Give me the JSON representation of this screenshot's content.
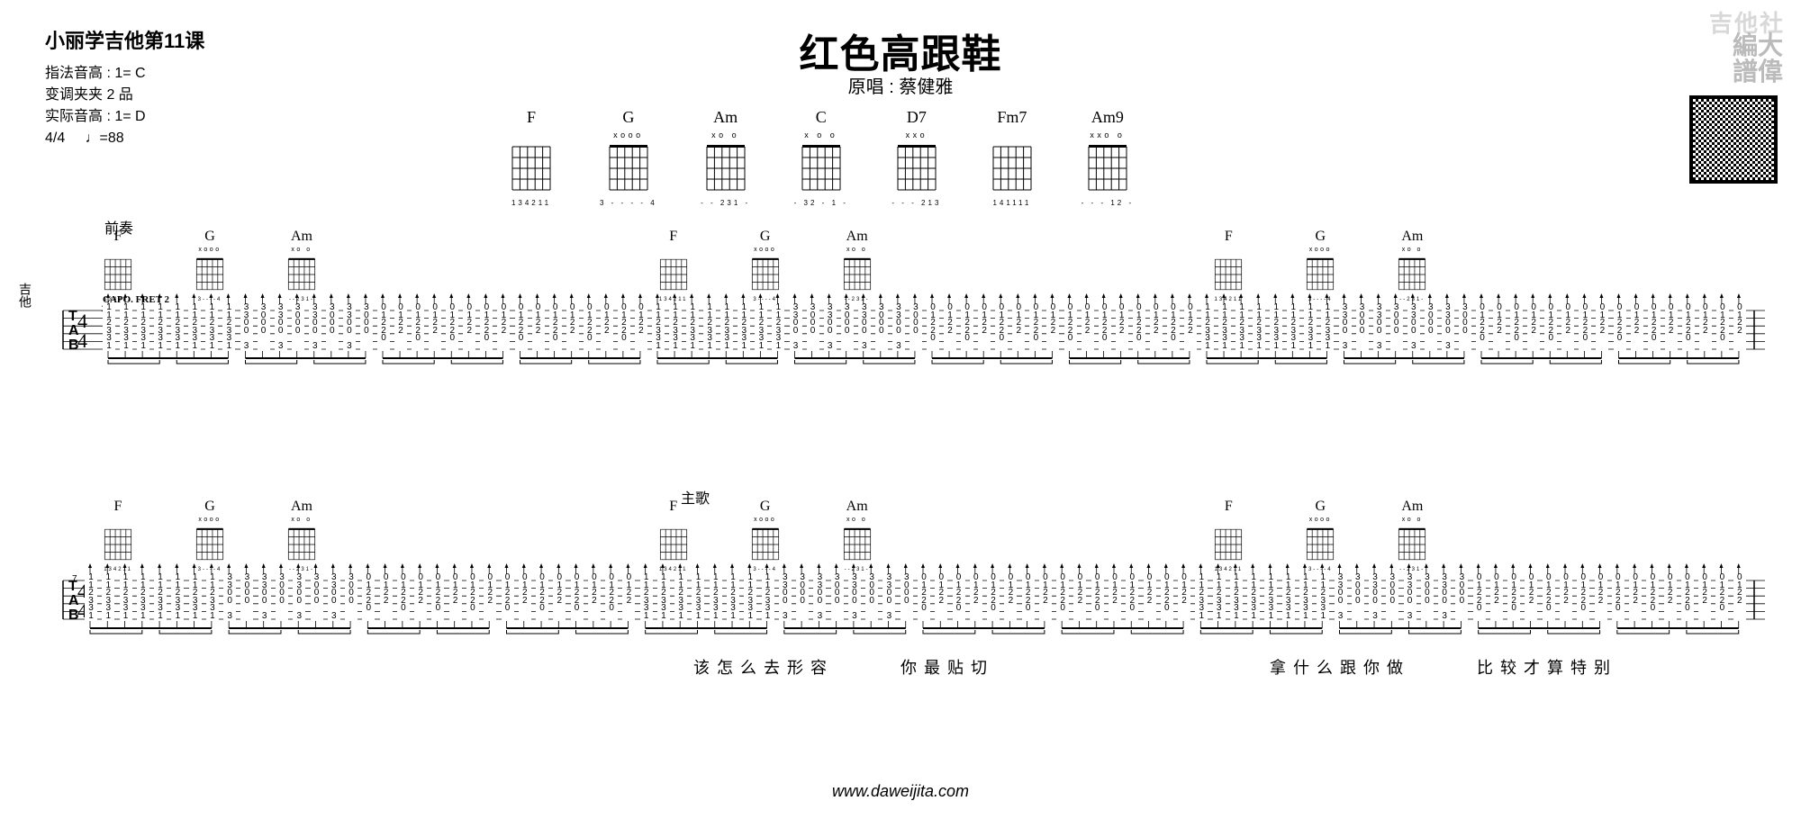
{
  "header": {
    "lesson_title": "小丽学吉他第11课",
    "meta": {
      "line1": "指法音高 : 1= C",
      "line2": "变调夹夹 2 品",
      "line3": "实际音高 : 1= D",
      "time_sig": "4/4",
      "tempo": "♩=88"
    },
    "song_title": "红色高跟鞋",
    "song_sub": "原唱 : 蔡健雅"
  },
  "watermarks": {
    "jts": "吉他社",
    "dwp_line1": "編大",
    "dwp_line2": "譜偉"
  },
  "chord_ref": [
    {
      "name": "F",
      "fingering": "134211",
      "top": "      ",
      "nut": false
    },
    {
      "name": "G",
      "fingering": "3 - - - - 4",
      "top": " xooo ",
      "nut": true
    },
    {
      "name": "Am",
      "fingering": "- - 231 -",
      "top": "xo   o",
      "nut": true
    },
    {
      "name": "C",
      "fingering": "- 32 - 1 -",
      "top": "x  o o",
      "nut": true
    },
    {
      "name": "D7",
      "fingering": "- - - 213",
      "top": "xxo   ",
      "nut": true
    },
    {
      "name": "Fm7",
      "fingering": "141111",
      "top": "      ",
      "nut": false
    },
    {
      "name": "Am9",
      "fingering": "- - - 12 -",
      "top": "xxo  o",
      "nut": true
    }
  ],
  "section_labels": {
    "intro": "前奏",
    "verse": "主歌"
  },
  "strip_chords": [
    {
      "name": "F",
      "fingering": "134211",
      "top": "      ",
      "nut": false
    },
    {
      "name": "G",
      "fingering": "3----4",
      "top": " xooo ",
      "nut": true
    },
    {
      "name": "Am",
      "fingering": "--231-",
      "top": "xo   o",
      "nut": true
    }
  ],
  "capo_note": "CAPO.  FRET 2",
  "bar_numbers": {
    "row1": "1",
    "row2": "7"
  },
  "tab_columns": {
    "F_block": [
      [
        "1",
        "1",
        "2",
        "3",
        "3",
        "1"
      ],
      [
        "1",
        "1",
        "2",
        "3",
        "3",
        "1"
      ],
      [
        "1",
        "1",
        "2",
        "3",
        "3",
        "1"
      ],
      [
        "1",
        "1",
        "2",
        "3",
        "3",
        "1"
      ],
      [
        "1",
        "1",
        "2",
        "3",
        "3",
        "1"
      ],
      [
        "1",
        "1",
        "2",
        "3",
        "3",
        "1"
      ],
      [
        "1",
        "1",
        "2",
        "3",
        "3",
        "1"
      ],
      [
        "1",
        "1",
        "2",
        "3",
        "3",
        "1"
      ]
    ],
    "G_block": [
      [
        "3",
        "3",
        "0",
        "0",
        "",
        "3"
      ],
      [
        "3",
        "0",
        "0",
        "0",
        "",
        ""
      ],
      [
        "3",
        "3",
        "0",
        "0",
        "",
        "3"
      ],
      [
        "3",
        "0",
        "0",
        "0",
        "",
        ""
      ],
      [
        "3",
        "3",
        "0",
        "0",
        "",
        "3"
      ],
      [
        "3",
        "0",
        "0",
        "0",
        "",
        ""
      ],
      [
        "3",
        "3",
        "0",
        "0",
        "",
        "3"
      ],
      [
        "3",
        "0",
        "0",
        "0",
        "",
        ""
      ]
    ],
    "Am_block": [
      [
        "0",
        "1",
        "2",
        "2",
        "0",
        ""
      ],
      [
        "0",
        "1",
        "2",
        "2",
        "",
        ""
      ],
      [
        "0",
        "1",
        "2",
        "2",
        "0",
        ""
      ],
      [
        "0",
        "1",
        "2",
        "2",
        "",
        ""
      ],
      [
        "0",
        "1",
        "2",
        "2",
        "0",
        ""
      ],
      [
        "0",
        "1",
        "2",
        "2",
        "",
        ""
      ],
      [
        "0",
        "1",
        "2",
        "2",
        "0",
        ""
      ],
      [
        "0",
        "1",
        "2",
        "2",
        "",
        ""
      ]
    ]
  },
  "lyrics": {
    "l1": "该怎么去形容",
    "l2": "你最贴切",
    "l3": "拿什么跟你做",
    "l4": "比较才算特别"
  },
  "footer": "www.daweijita.com"
}
